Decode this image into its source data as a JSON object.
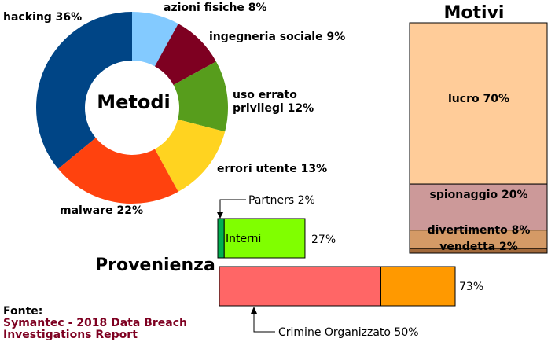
{
  "chart_data": [
    {
      "type": "pie",
      "title": "Metodi",
      "labels": [
        "hacking 36%",
        "azioni fisiche 8%",
        "ingegneria sociale 9%",
        "uso errato privilegi 12%",
        "errori utente 13%",
        "malware 22%"
      ],
      "categories": [
        "hacking",
        "azioni fisiche",
        "ingegneria sociale",
        "uso errato privilegi",
        "errori utente",
        "malware"
      ],
      "values": [
        36,
        8,
        9,
        12,
        13,
        22
      ],
      "colors": [
        "#004586",
        "#83caff",
        "#7e0021",
        "#579d1c",
        "#ffd320",
        "#ff420e"
      ]
    },
    {
      "type": "bar",
      "title": "Motivi",
      "labels": [
        "lucro 70%",
        "spionaggio 20%",
        "divertimento 8%",
        "vendetta 2%"
      ],
      "categories": [
        "lucro",
        "spionaggio",
        "divertimento",
        "vendetta"
      ],
      "values": [
        70,
        20,
        8,
        2
      ],
      "colors": [
        "#ffcc99",
        "#cc9999",
        "#d49a66",
        "#a0683a"
      ]
    },
    {
      "type": "bar",
      "title": "Provenienza",
      "bars": [
        {
          "total_label": "27%",
          "total": 27,
          "segments": [
            {
              "name": "Partners 2%",
              "value": 2,
              "color": "#00b050"
            },
            {
              "name": "Interni",
              "value": 25,
              "color": "#80ff00"
            }
          ]
        },
        {
          "total_label": "73%",
          "total": 73,
          "segments": [
            {
              "name": "Crimine Organizzato 50%",
              "value": 50,
              "color": "#ff6666"
            },
            {
              "name": "",
              "value": 23,
              "color": "#ff9900"
            }
          ]
        }
      ]
    }
  ],
  "source": {
    "heading": "Fonte:",
    "line1": "Symantec - 2018 Data Breach",
    "line2": "Investigations Report"
  },
  "colors": {
    "source_text": "#7e0021"
  }
}
